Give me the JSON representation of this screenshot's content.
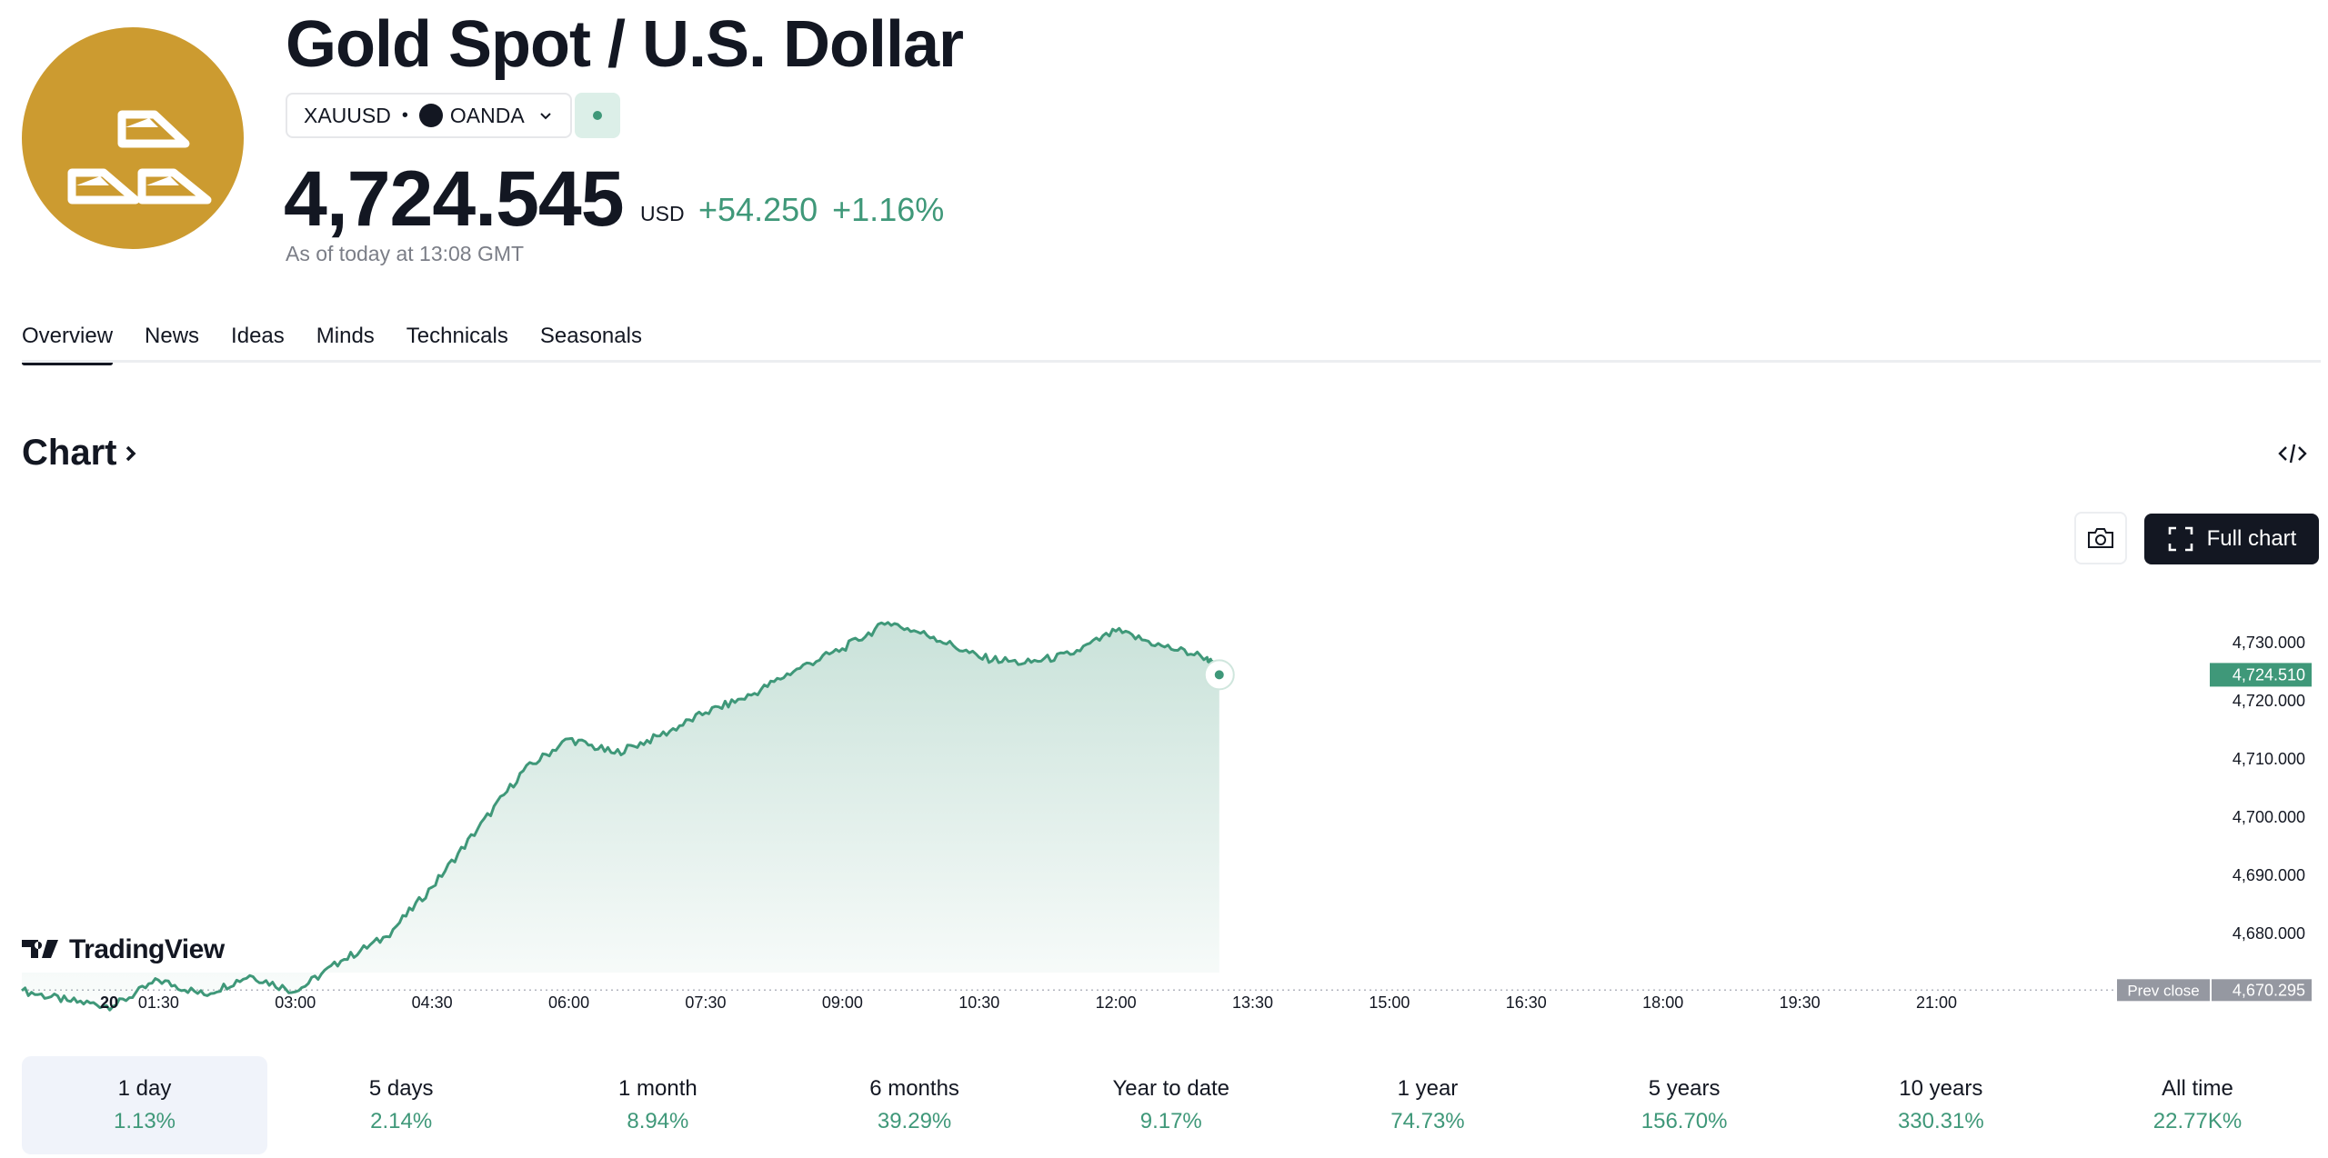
{
  "header": {
    "title": "Gold Spot / U.S. Dollar",
    "symbol": "XAUUSD",
    "separator": "•",
    "exchange": "OANDA",
    "price": "4,724.545",
    "currency": "USD",
    "change": "+54.250",
    "change_percent": "+1.16%",
    "as_of": "As of today at 13:08 GMT",
    "logo_icon": "gold-bars-icon",
    "logo_color": "#cc9b30"
  },
  "tabs": [
    "Overview",
    "News",
    "Ideas",
    "Minds",
    "Technicals",
    "Seasonals"
  ],
  "active_tab": "Overview",
  "chart_section": {
    "heading": "Chart",
    "embed_icon": "code-embed-icon",
    "snapshot_icon": "camera-icon",
    "full_chart_label": "Full chart",
    "full_chart_icon": "expand-icon",
    "brand": "TradingView",
    "up_color": "#3f9879"
  },
  "chart_data": {
    "type": "area",
    "x_ticks": [
      "20",
      "01:30",
      "03:00",
      "04:30",
      "06:00",
      "07:30",
      "09:00",
      "10:30",
      "12:00",
      "13:30",
      "15:00",
      "16:30",
      "18:00",
      "19:30",
      "21:00"
    ],
    "x": [
      "00:00",
      "00:30",
      "01:00",
      "01:30",
      "02:00",
      "02:30",
      "03:00",
      "03:30",
      "04:00",
      "04:30",
      "05:00",
      "05:30",
      "06:00",
      "06:30",
      "07:00",
      "07:30",
      "08:00",
      "08:30",
      "09:00",
      "09:30",
      "10:00",
      "10:30",
      "11:00",
      "11:30",
      "12:00",
      "12:30",
      "13:00",
      "13:08"
    ],
    "y": [
      4670.2,
      4668.5,
      4667.5,
      4672.0,
      4669.5,
      4672.8,
      4670.0,
      4675.3,
      4679.5,
      4688.0,
      4698.0,
      4708.0,
      4713.5,
      4711.0,
      4714.0,
      4718.0,
      4721.0,
      4725.5,
      4729.0,
      4733.5,
      4731.0,
      4727.5,
      4726.5,
      4728.0,
      4732.0,
      4729.5,
      4727.5,
      4724.5
    ],
    "y_ticks": [
      "4,730.000",
      "4,720.000",
      "4,710.000",
      "4,700.000",
      "4,690.000",
      "4,680.000"
    ],
    "y_tick_values": [
      4730,
      4720,
      4710,
      4700,
      4690,
      4680
    ],
    "ylim": [
      4665.5,
      4740.5
    ],
    "last_value_label": "4,724.510",
    "prev_close_label": "Prev close",
    "prev_close_value": "4,670.295",
    "prev_close": 4670.295
  },
  "ranges": [
    {
      "label": "1 day",
      "value": "1.13%"
    },
    {
      "label": "5 days",
      "value": "2.14%"
    },
    {
      "label": "1 month",
      "value": "8.94%"
    },
    {
      "label": "6 months",
      "value": "39.29%"
    },
    {
      "label": "Year to date",
      "value": "9.17%"
    },
    {
      "label": "1 year",
      "value": "74.73%"
    },
    {
      "label": "5 years",
      "value": "156.70%"
    },
    {
      "label": "10 years",
      "value": "330.31%"
    },
    {
      "label": "All time",
      "value": "22.77K%"
    }
  ],
  "active_range": "1 day"
}
